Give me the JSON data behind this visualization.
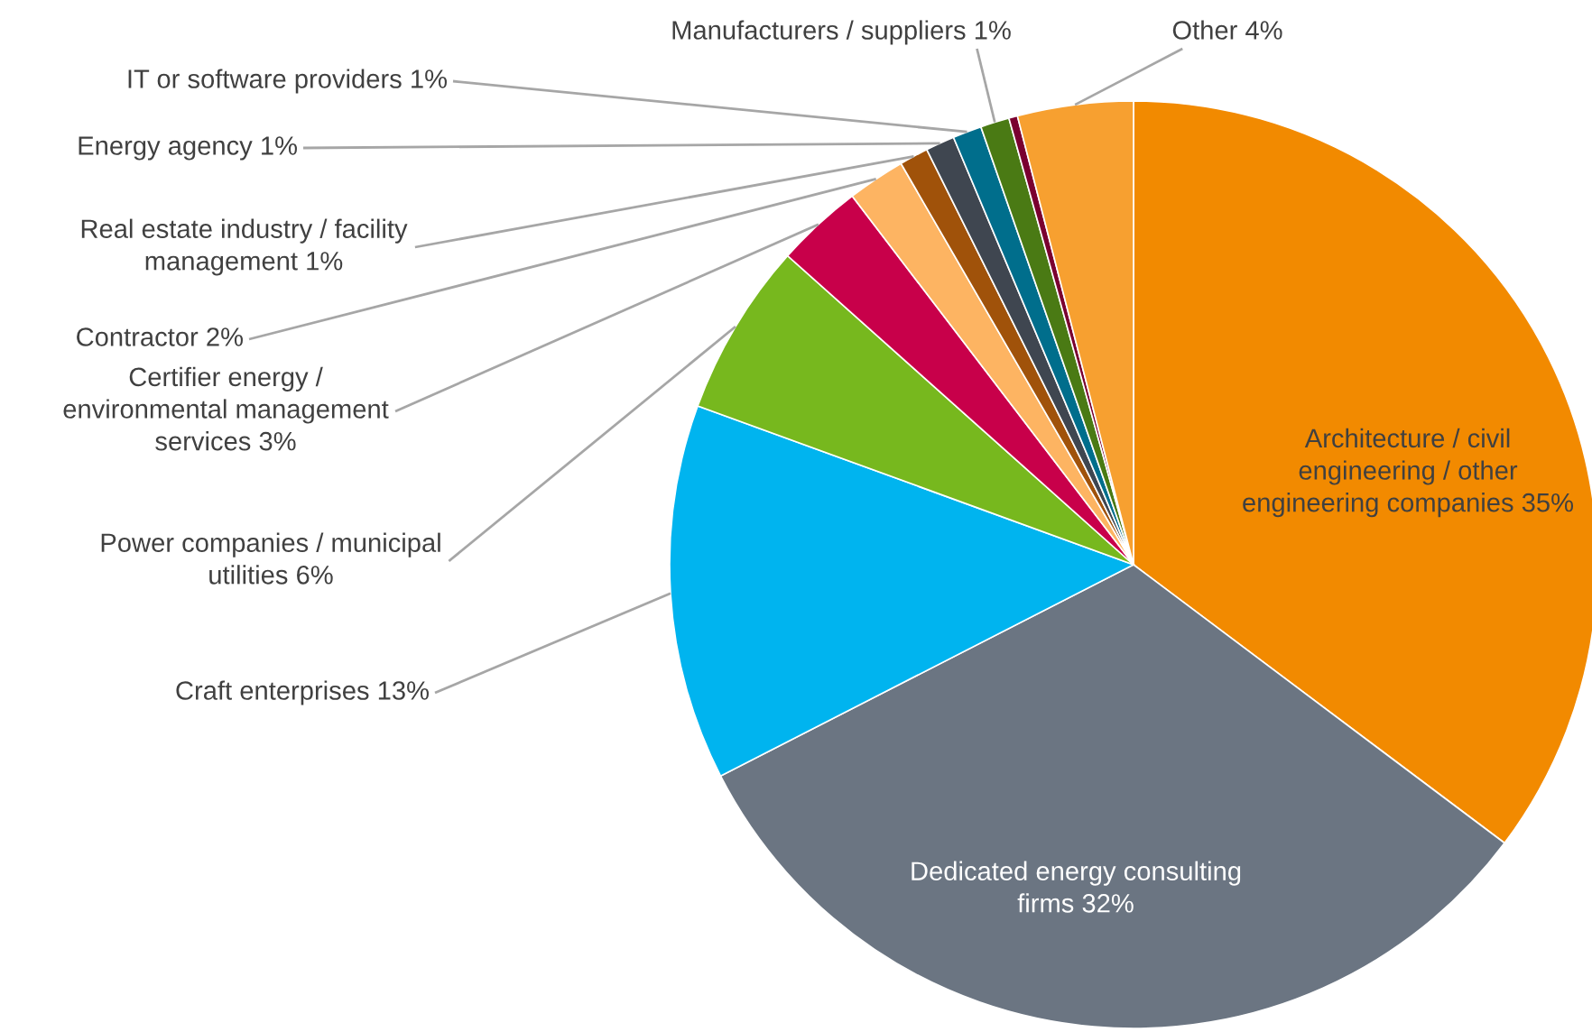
{
  "chart_data": {
    "type": "pie",
    "categories": [
      "Architecture / civil engineering / other engineering companies",
      "Dedicated energy consulting firms",
      "Craft enterprises",
      "Power companies / municipal utilities",
      "Certifier energy / environmental management services",
      "Contractor",
      "Real estate industry / facility management",
      "Energy agency",
      "IT or software providers",
      "Manufacturers / suppliers",
      null,
      "Other"
    ],
    "values": [
      35,
      32,
      13,
      6,
      3,
      2,
      1,
      1,
      1,
      1,
      0.3,
      4
    ],
    "value_labels": [
      "35%",
      "32%",
      "13%",
      "6%",
      "3%",
      "2%",
      "1%",
      "1%",
      "1%",
      "1%",
      null,
      "4%"
    ],
    "colors": [
      "#f28a00",
      "#6b7582",
      "#00b4ef",
      "#77b81e",
      "#c8004a",
      "#fdb462",
      "#a0520a",
      "#3f4650",
      "#006e8c",
      "#4a7a14",
      "#7a0030",
      "#f7a030"
    ],
    "legend": false
  }
}
